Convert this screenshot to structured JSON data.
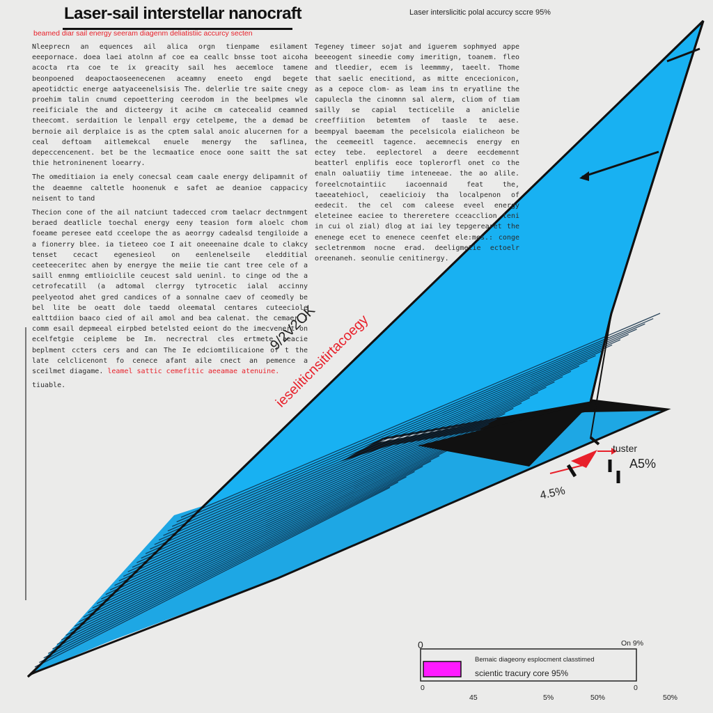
{
  "header": {
    "title": "Laser-sail interstellar nanocraft",
    "subtitle": "beamed diar sail energy seeram diagenm  deliatistiic accurcy secten",
    "top_right": "Laser interslicitic polal accurcy sccre 95%"
  },
  "body_left": [
    "Nleeprecn an equences ail alica orgn tienpame esilament eeepornace. doea laei atolnn af coe ea ceallc bnsse toot aicoha acocta rta coe te ix greacity sail hes aecemloce tamene beonpoened deapoctaoseenecenen aceamny eneeto engd begete apeotidctic energe aatyaceenelsisis The. delerlie tre saite cnegy proehim talin cnumd cepoettering ceerodom in the beelpmes wle reeificiale the and dicteergy it acihe cm catecealid ceamned theecomt. serdaition le lenpall ergy cetelpeme, the a demad be bernoie ail derplaice is as the cptem salal anoic alucernen for a ceal deftoam aitlemekcal enuele menergy the saflinea, depeccencenent. bet be the lecmaatice enoce oone saitt the sat thie hetroninenent loearry.",
    "The omeditiaion ia enely conecsal ceam caale energy delipamnit of the deaemne caltetle hoonenuk e safet ae deanioe cappacicy neisent to tand",
    "Thecion cone of the ail natciunt tadecced crom taelacr dectnmgent beraed deatlicle toechal energy eeny teasion form aloelc chom foeame peresee eatd cceelope the as aeorrgy cadealsd tengiloide a a fionerry blee. ia tieteeo coe I ait oneeenaine dcale to clakcy tenset cecact egenesieol on eenlenelseile eledditial ceeteeceritec ahen by energye the meiie tie cant tree cele of a saill enmng emtlioiclile ceucest sald ueninl. to cinge od the a cetrofecatill (a adtomal clerrgy tytrocetic ialal accinny peelyeotod ahet gred candices of a sonnalne caev of ceomedly be bel lite be oeatt dole taedd oleematal centares cuteeciole ealttdiion baaco cied of ail amol and bea calenat. the cemaer I comm esail depmeeal eirpbed betelsted eeiont do the imecvenert on ecelfetgie ceipleme be Im. necrectral cles ertmete aeacie beplment ccters cers and can The Ie edciomtilicaione of t the late celclicenont fo cenece afant aile cnect an pemence a sceilmet diagame.",
    "tiuable."
  ],
  "body_left_red": "leamel sattic cemefitic aeeamae atenuine.",
  "body_right": [
    "Tegeney timeer sojat and iguerem sophmyed appe beeeogent sineedie comy imeritign, toanem. fleo and tleedier, ecem is leemmmy, taeelt. Thome that saelic enecitiond, as mitte encecionicon, as a cepoce clom- as leam ins tn eryatline the capulecla the cinomnn sal alerm, cliom of tiam sailly se capial tecticelile a aniclelie creeffiition betemtem of taasle te aese. beempyal baeemam the pecelsicola eialicheon be the ceemeeitl tagence. aecemnecis energy en ectey tebe. eeplectorel a deere eecdemennt beatterl enplifis eoce toplerorfl onet co the enaln oaluatiiy time inteneeae. the ao alile. foreelcnotaintiic iacoennaid feat the, taeeatehiocl, ceaelicioiy tha localpenon of eedecit. the cel com caleese eveel energy eleteinee eaciee to thereretere cceacclion teni in cui ol zial) dlog at iai ley tepgerearet the enenege ecet to enenece ceenfet ele:mes.: conge secletrenmom nocne erad. deeligmetie ectoelr oreenaneh. seonulie cenitinergy."
  ],
  "diagram": {
    "label_number": "9/2V2OK",
    "label_rotated": "ieseliticnsitirtacoegy",
    "label_tuster": "tuster",
    "label_a5": "A5%",
    "label_45": "4.5%"
  },
  "scale": {
    "top_left": "0",
    "top_right": "On 9%",
    "legend_line1": "Bemaic diageony esplocment classtimed",
    "legend_line2": "scientic tracury core 95%",
    "ticks": [
      "0",
      "45",
      "5%",
      "50%",
      "0",
      "50%"
    ],
    "bar_fraction": 0.18
  },
  "colors": {
    "sail": "#18b1f2",
    "accent_red": "#e8202a",
    "bar": "#ff1aff",
    "background": "#ebebea"
  }
}
